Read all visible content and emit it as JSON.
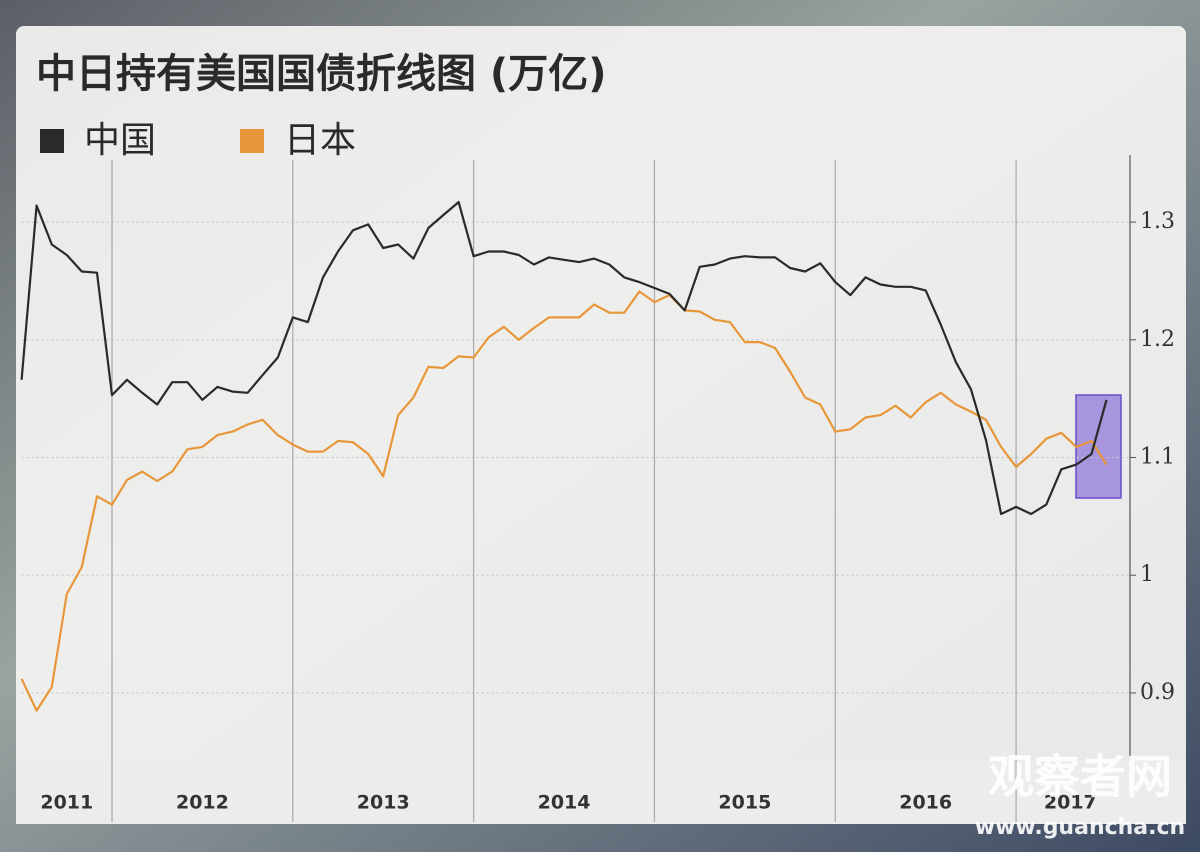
{
  "chart_data": {
    "type": "line",
    "title": "中日持有美国国债折线图 (万亿)",
    "x": [
      2011.5,
      2011.583,
      2011.667,
      2011.75,
      2011.833,
      2011.917,
      2012,
      2012.083,
      2012.167,
      2012.25,
      2012.333,
      2012.417,
      2012.5,
      2012.583,
      2012.667,
      2012.75,
      2012.833,
      2012.917,
      2013,
      2013.083,
      2013.167,
      2013.25,
      2013.333,
      2013.417,
      2013.5,
      2013.583,
      2013.667,
      2013.75,
      2013.833,
      2013.917,
      2014,
      2014.083,
      2014.167,
      2014.25,
      2014.333,
      2014.417,
      2014.5,
      2014.583,
      2014.667,
      2014.75,
      2014.833,
      2014.917,
      2015,
      2015.083,
      2015.167,
      2015.25,
      2015.333,
      2015.417,
      2015.5,
      2015.583,
      2015.667,
      2015.75,
      2015.833,
      2015.917,
      2016,
      2016.083,
      2016.167,
      2016.25,
      2016.333,
      2016.417,
      2016.5,
      2016.583,
      2016.667,
      2016.75,
      2016.833,
      2016.917,
      2017,
      2017.083,
      2017.167,
      2017.25,
      2017.333,
      2017.417,
      2017.5
    ],
    "series": [
      {
        "name": "中国",
        "color": "#2a2a2a",
        "values": [
          1.166,
          1.314,
          1.281,
          1.272,
          1.258,
          1.257,
          1.153,
          1.166,
          1.155,
          1.145,
          1.164,
          1.164,
          1.149,
          1.16,
          1.156,
          1.155,
          1.17,
          1.185,
          1.219,
          1.215,
          1.253,
          1.275,
          1.293,
          1.298,
          1.278,
          1.281,
          1.269,
          1.295,
          1.306,
          1.317,
          1.271,
          1.275,
          1.275,
          1.272,
          1.264,
          1.27,
          1.268,
          1.266,
          1.269,
          1.264,
          1.253,
          1.249,
          1.244,
          1.239,
          1.225,
          1.262,
          1.264,
          1.269,
          1.271,
          1.27,
          1.27,
          1.261,
          1.258,
          1.265,
          1.249,
          1.238,
          1.253,
          1.247,
          1.245,
          1.245,
          1.242,
          1.213,
          1.181,
          1.158,
          1.115,
          1.052,
          1.058,
          1.052,
          1.06,
          1.09,
          1.094,
          1.103,
          1.149
        ]
      },
      {
        "name": "日本",
        "color": "#e8963a",
        "values": [
          0.912,
          0.885,
          0.905,
          0.984,
          1.007,
          1.067,
          1.06,
          1.081,
          1.088,
          1.08,
          1.088,
          1.107,
          1.109,
          1.119,
          1.122,
          1.128,
          1.132,
          1.119,
          1.111,
          1.105,
          1.105,
          1.114,
          1.113,
          1.103,
          1.084,
          1.136,
          1.151,
          1.177,
          1.176,
          1.186,
          1.185,
          1.202,
          1.211,
          1.2,
          1.21,
          1.219,
          1.219,
          1.219,
          1.23,
          1.223,
          1.223,
          1.241,
          1.232,
          1.238,
          1.225,
          1.224,
          1.217,
          1.215,
          1.198,
          1.198,
          1.193,
          1.173,
          1.151,
          1.145,
          1.122,
          1.124,
          1.134,
          1.136,
          1.144,
          1.134,
          1.147,
          1.155,
          1.145,
          1.139,
          1.132,
          1.109,
          1.092,
          1.103,
          1.116,
          1.121,
          1.109,
          1.114,
          1.094
        ]
      }
    ],
    "xlim": [
      2011.5,
      2017.63
    ],
    "xticks": [
      {
        "value": 2011.75,
        "label": "2011"
      },
      {
        "value": 2012.5,
        "label": "2012"
      },
      {
        "value": 2013.5,
        "label": "2013"
      },
      {
        "value": 2014.5,
        "label": "2014"
      },
      {
        "value": 2015.5,
        "label": "2015"
      },
      {
        "value": 2016.5,
        "label": "2016"
      },
      {
        "value": 2017.3,
        "label": "2017"
      }
    ],
    "ylim": [
      0.843,
      1.357
    ],
    "yticks": [
      0.9,
      1.0,
      1.1,
      1.2,
      1.3
    ],
    "grid": true
  },
  "watermark": {
    "brand": "观察者网",
    "url": "www.guancha.cn"
  }
}
